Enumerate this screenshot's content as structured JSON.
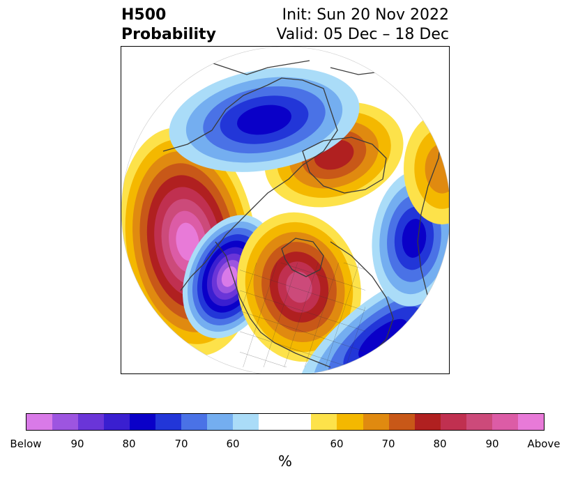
{
  "header": {
    "title_line1": "H500",
    "title_line2": "Probability",
    "init": "Init: Sun 20 Nov 2022",
    "valid": "Valid: 05 Dec – 18 Dec"
  },
  "map": {
    "projection": "north-polar-stereographic",
    "features": [
      "coastlines",
      "country-borders",
      "state-province-borders"
    ],
    "anomalies": [
      {
        "region": "north-pacific",
        "sign": "above",
        "max_level": "Above"
      },
      {
        "region": "western-north-america",
        "sign": "below",
        "max_level": "Below"
      },
      {
        "region": "eastern-north-america",
        "sign": "above",
        "max_level": "90"
      },
      {
        "region": "arctic-ocean-greenland",
        "sign": "above",
        "max_level": "80"
      },
      {
        "region": "eastern-siberia",
        "sign": "below",
        "max_level": "80"
      },
      {
        "region": "north-atlantic",
        "sign": "below",
        "max_level": "80"
      },
      {
        "region": "northern-europe",
        "sign": "below",
        "max_level": "80"
      },
      {
        "region": "western-russia",
        "sign": "above",
        "max_level": "70"
      }
    ]
  },
  "colorbar": {
    "unit_label": "%",
    "tick_labels": [
      "Below",
      "90",
      "80",
      "70",
      "60",
      "60",
      "70",
      "80",
      "90",
      "Above"
    ],
    "colors": [
      "#d97ae8",
      "#9d55e0",
      "#6a35d8",
      "#3a1fd0",
      "#0a00c8",
      "#2236d8",
      "#4a72e6",
      "#74aef0",
      "#aadcf8",
      "#ffffff",
      "#fde24a",
      "#f4b800",
      "#e08a10",
      "#c85818",
      "#b02020",
      "#c03050",
      "#cc4a7a",
      "#dc5ca6",
      "#e87ad8"
    ]
  }
}
